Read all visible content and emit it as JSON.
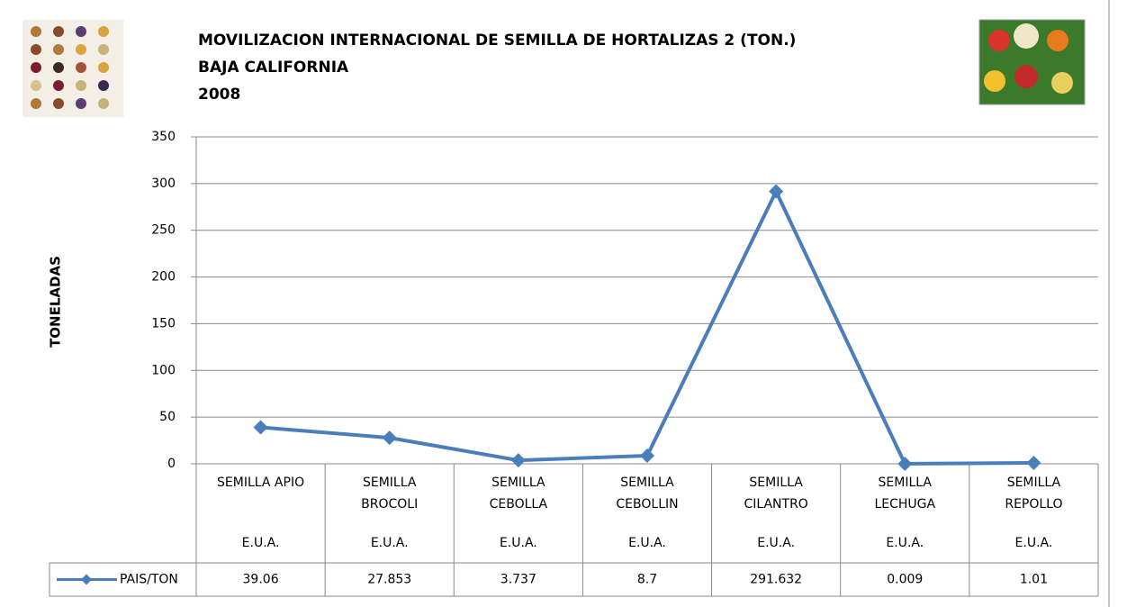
{
  "chart_data": {
    "type": "line",
    "title": [
      "MOVILIZACION INTERNACIONAL DE SEMILLA DE HORTALIZAS 2 (TON.)",
      "BAJA CALIFORNIA",
      "2008"
    ],
    "y_label": "TONELADAS",
    "categories": [
      "SEMILLA APIO",
      "SEMILLA BROCOLI",
      "SEMILLA CEBOLLA",
      "SEMILLA CEBOLLIN",
      "SEMILLA CILANTRO",
      "SEMILLA LECHUGA",
      "SEMILLA REPOLLO"
    ],
    "subcategories": [
      "E.U.A.",
      "E.U.A.",
      "E.U.A.",
      "E.U.A.",
      "E.U.A.",
      "E.U.A.",
      "E.U.A."
    ],
    "series": [
      {
        "name": "PAIS/TON",
        "color": "#4a7ebb",
        "values": [
          39.06,
          27.853,
          3.737,
          8.7,
          291.632,
          0.009,
          1.01
        ]
      }
    ],
    "ylim": [
      0,
      350
    ],
    "yticks": [
      0,
      50,
      100,
      150,
      200,
      250,
      300,
      350
    ],
    "grid": true,
    "data_table": true
  }
}
